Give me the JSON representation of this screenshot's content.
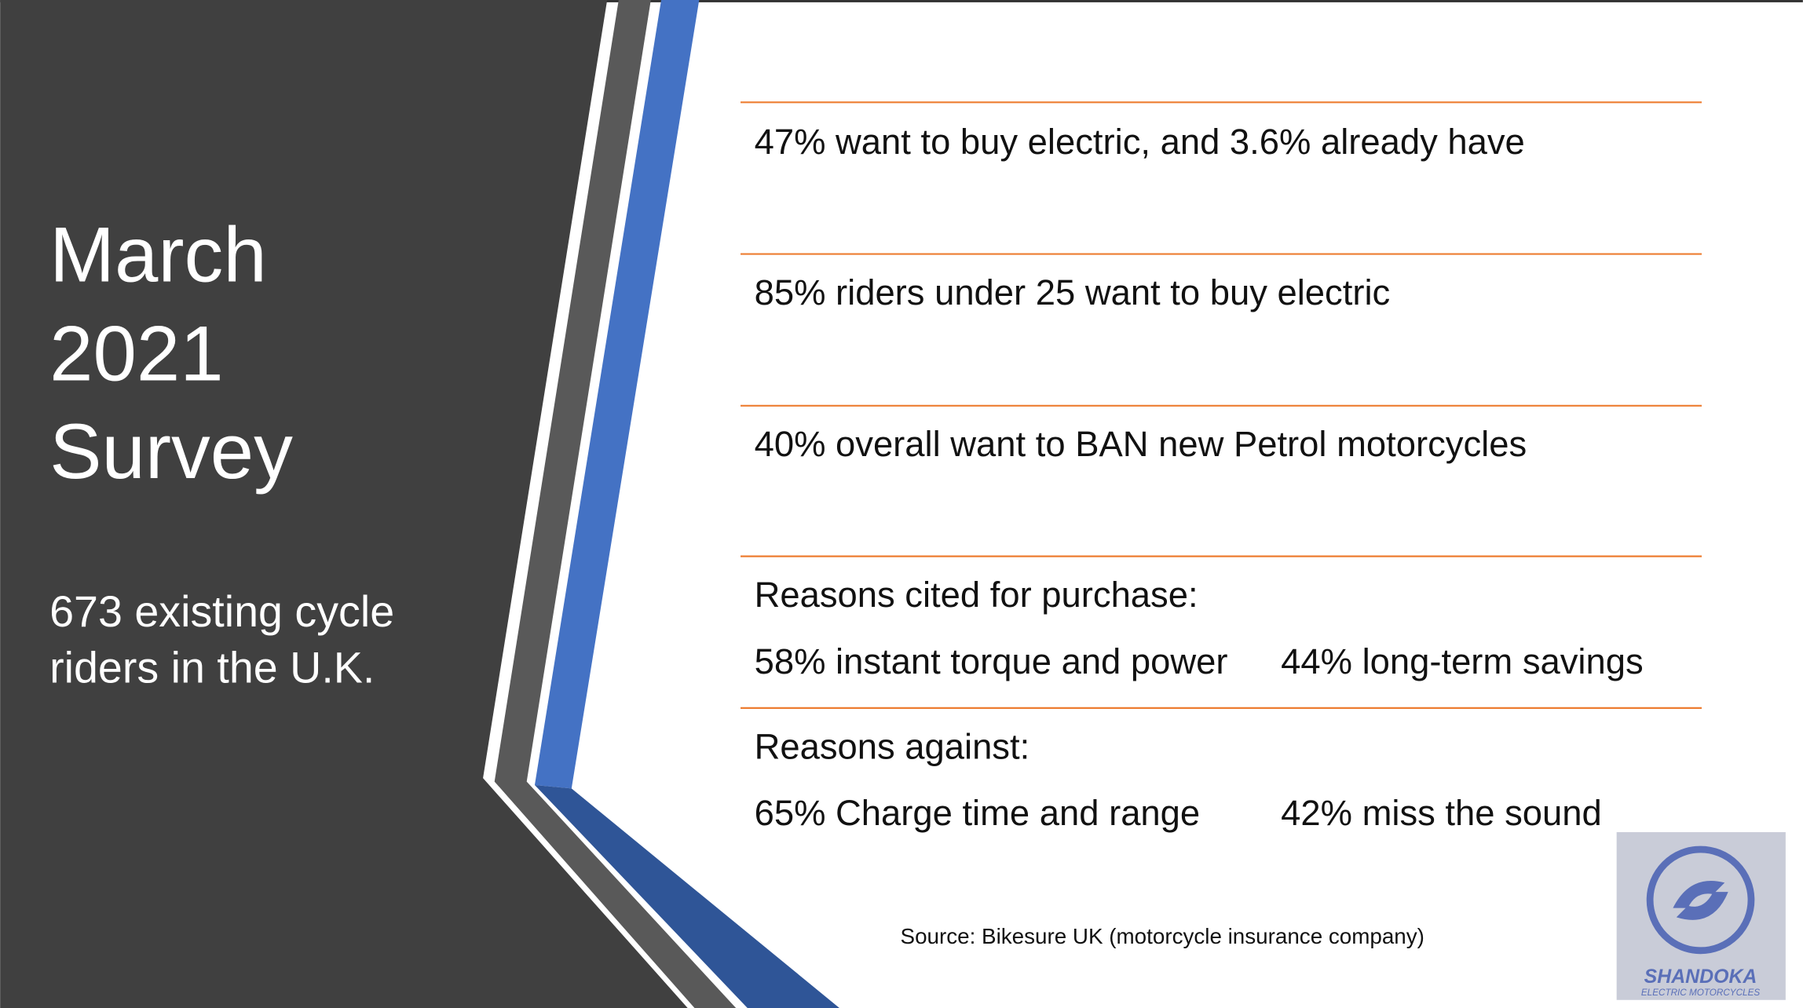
{
  "title": {
    "lines": [
      "March",
      "2021",
      "Survey"
    ]
  },
  "subtitle": {
    "lines": [
      "673 existing cycle",
      "riders in the U.K."
    ]
  },
  "findings": [
    "47% want to buy electric, and 3.6% already have",
    "85% riders under 25 want to buy electric",
    "40% overall want to BAN new Petrol motorcycles"
  ],
  "purchase": {
    "heading": "Reasons cited for purchase:",
    "items": [
      "58% instant torque and power",
      "44% long-term savings"
    ]
  },
  "against": {
    "heading": "Reasons against:",
    "items": [
      "65% Charge time and range",
      "42% miss the sound"
    ]
  },
  "source": "Source: Bikesure UK (motorcycle insurance company)",
  "logo": {
    "name": "SHANDOKA",
    "tagline": "ELECTRIC MOTORCYCLES"
  }
}
